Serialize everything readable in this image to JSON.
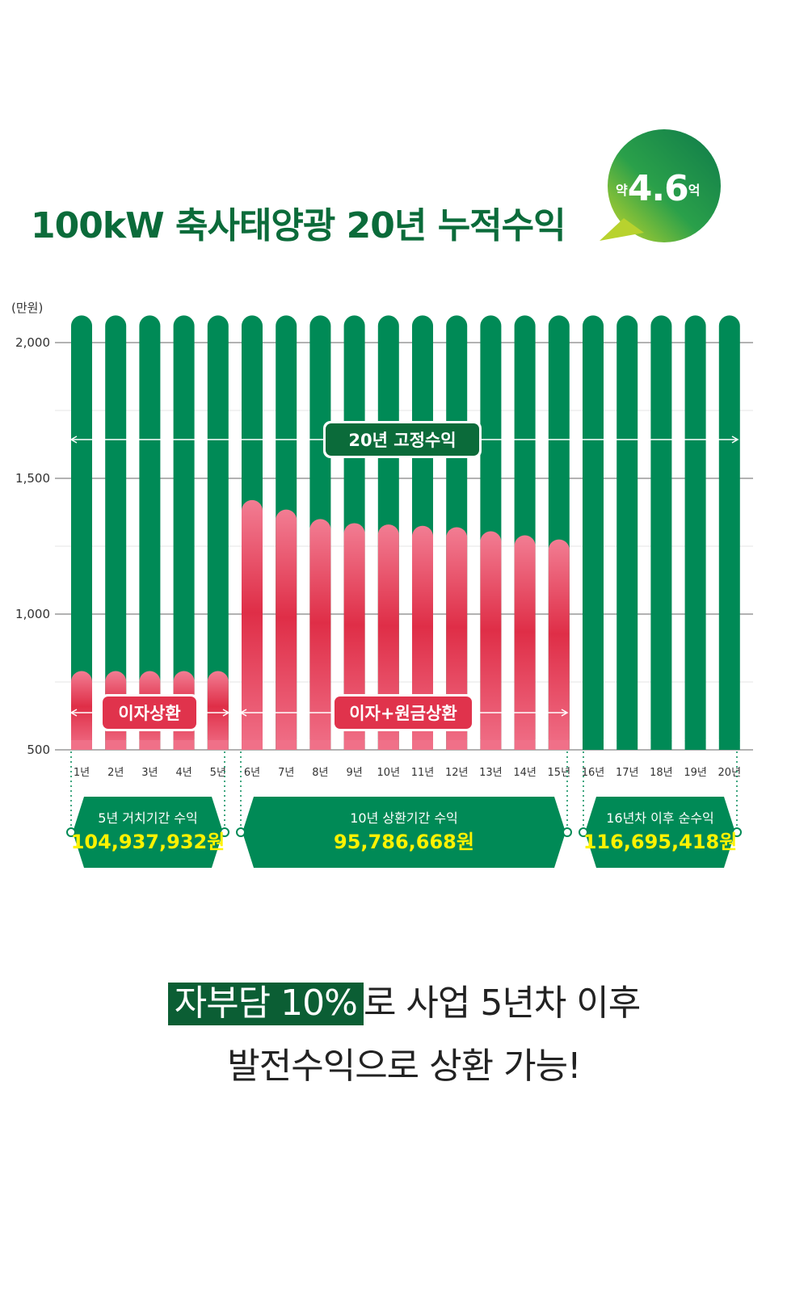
{
  "title": "100kW 축사태양광 20년 누적수익",
  "badge": {
    "prefix": "약",
    "value": "4.6",
    "suffix": "억"
  },
  "colors": {
    "green": "#008a56",
    "dark_green": "#0b6b3a",
    "red": "#e0334c",
    "pink": "#f07088",
    "yellow": "#fff200"
  },
  "chart_data": {
    "type": "bar",
    "unit_label": "(만원)",
    "categories": [
      "1년",
      "2년",
      "3년",
      "4년",
      "5년",
      "6년",
      "7년",
      "8년",
      "9년",
      "10년",
      "11년",
      "12년",
      "13년",
      "14년",
      "15년",
      "16년",
      "17년",
      "18년",
      "19년",
      "20년"
    ],
    "ylim": [
      500,
      2100
    ],
    "y_ticks": [
      {
        "value": 500,
        "label": "500"
      },
      {
        "value": 1000,
        "label": "1,000"
      },
      {
        "value": 1500,
        "label": "1,500"
      },
      {
        "value": 2000,
        "label": "2,000"
      }
    ],
    "series": [
      {
        "values": [
          2100,
          2100,
          2100,
          2100,
          2100,
          2100,
          2100,
          2100,
          2100,
          2100,
          2100,
          2100,
          2100,
          2100,
          2100,
          2100,
          2100,
          2100,
          2100,
          2100
        ]
      },
      {
        "values": [
          790,
          790,
          790,
          790,
          790,
          1420,
          1385,
          1350,
          1335,
          1330,
          1325,
          1320,
          1305,
          1290,
          1275,
          null,
          null,
          null,
          null,
          null
        ]
      }
    ],
    "annotations": {
      "fixed_income": "20년 고정수익",
      "interest": "이자상환",
      "interest_principal": "이자+원금상환"
    },
    "periods": [
      {
        "label": "5년 거치기간 수익",
        "value": "104,937,932원"
      },
      {
        "label": "10년 상환기간 수익",
        "value": "95,786,668원"
      },
      {
        "label": "16년차 이후 순수익",
        "value": "116,695,418원"
      }
    ]
  },
  "footer": {
    "highlight": "자부담 10%",
    "line1_rest": "로 사업 5년차 이후",
    "line2": "발전수익으로 상환 가능!"
  }
}
